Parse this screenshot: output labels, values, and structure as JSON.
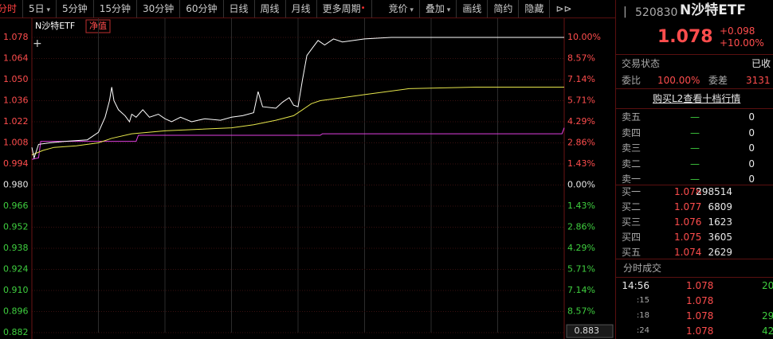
{
  "toolbar": {
    "periods": [
      "分时",
      "5日",
      "5分钟",
      "15分钟",
      "30分钟",
      "60分钟",
      "日线",
      "周线",
      "月线",
      "更多周期"
    ],
    "tools": [
      "竞价",
      "叠加",
      "画线",
      "简约",
      "隐藏"
    ]
  },
  "chart": {
    "legend": {
      "name": "N沙特ETF",
      "badge": "净值"
    },
    "xlim": [
      0,
      240
    ],
    "ylim": [
      0.882,
      1.078
    ],
    "yticks": [
      1.078,
      1.064,
      {
        "value": 1.05,
        "label": "1.050"
      },
      1.036,
      1.022,
      1.008,
      0.994,
      {
        "value": 0.98,
        "label": "0.980"
      },
      0.966,
      0.952,
      0.938,
      0.924,
      {
        "value": 0.91,
        "label": "0.910"
      },
      0.896,
      0.882
    ],
    "pct_labels": [
      "10.00%",
      "8.57%",
      "7.14%",
      "5.71%",
      "4.29%",
      "2.86%",
      "1.43%",
      "0.00%",
      "1.43%",
      "2.86%",
      "4.29%",
      "5.71%",
      "7.14%",
      "8.57%",
      "10.00%"
    ],
    "price": {
      "color": "#ffffff",
      "x": [
        0,
        1,
        3,
        8,
        15,
        25,
        30,
        33,
        35,
        36,
        37,
        39,
        42,
        44,
        45,
        47,
        50,
        53,
        57,
        60,
        63,
        67,
        72,
        78,
        85,
        90,
        95,
        100,
        102,
        104,
        110,
        113,
        116,
        118,
        120,
        122,
        124,
        126,
        129,
        132,
        136,
        140,
        150,
        162,
        240
      ],
      "values": [
        1.005,
        0.998,
        1.007,
        1.008,
        1.009,
        1.01,
        1.015,
        1.025,
        1.036,
        1.045,
        1.036,
        1.03,
        1.026,
        1.022,
        1.027,
        1.025,
        1.03,
        1.025,
        1.027,
        1.024,
        1.022,
        1.025,
        1.022,
        1.024,
        1.023,
        1.025,
        1.026,
        1.028,
        1.042,
        1.032,
        1.031,
        1.035,
        1.038,
        1.033,
        1.032,
        1.05,
        1.066,
        1.07,
        1.076,
        1.073,
        1.077,
        1.075,
        1.077,
        1.078,
        1.078
      ]
    },
    "average": {
      "color": "#e6e64c",
      "x": [
        0,
        5,
        10,
        20,
        30,
        36,
        45,
        60,
        90,
        100,
        110,
        118,
        122,
        126,
        130,
        140,
        150,
        170,
        200,
        240
      ],
      "values": [
        1.0,
        1.003,
        1.005,
        1.006,
        1.008,
        1.011,
        1.014,
        1.016,
        1.018,
        1.02,
        1.023,
        1.026,
        1.03,
        1.034,
        1.036,
        1.038,
        1.04,
        1.044,
        1.045,
        1.045
      ]
    },
    "nav": {
      "color": "#e040e0",
      "x": [
        0,
        3,
        4,
        47,
        48,
        130,
        131,
        239,
        240
      ],
      "values": [
        0.997,
        0.998,
        1.009,
        1.009,
        1.013,
        1.013,
        1.014,
        1.014,
        1.018
      ]
    },
    "cursor_label": 0.883
  },
  "quote": {
    "code": "520830",
    "name": "N沙特ETF",
    "price": 1.078,
    "change": "+0.098",
    "change_pct": "+10.00%",
    "status_label": "交易状态",
    "status": "已收",
    "ratio_label": "委比",
    "ratio": "100.00%",
    "diff_label": "委差",
    "diff": "3131",
    "l2_link": "购买L2查看十档行情",
    "asks": [
      {
        "label": "卖五",
        "price": "—",
        "volume": 0
      },
      {
        "label": "卖四",
        "price": "—",
        "volume": 0
      },
      {
        "label": "卖三",
        "price": "—",
        "volume": 0
      },
      {
        "label": "卖二",
        "price": "—",
        "volume": 0
      },
      {
        "label": "卖一",
        "price": "—",
        "volume": 0
      }
    ],
    "bids": [
      {
        "label": "买一",
        "price": 1.078,
        "volume": 298514
      },
      {
        "label": "买二",
        "price": 1.077,
        "volume": 6809
      },
      {
        "label": "买三",
        "price": 1.076,
        "volume": 1623
      },
      {
        "label": "买四",
        "price": 1.075,
        "volume": 3605
      },
      {
        "label": "买五",
        "price": 1.074,
        "volume": 2629
      }
    ],
    "trades_title": "分时成交",
    "trades": [
      {
        "time": "14:56",
        "price": 1.078,
        "volume": 20
      },
      {
        "time": ":15",
        "price": 1.078
      },
      {
        "time": ":18",
        "price": 1.078,
        "volume": 29
      },
      {
        "time": ":24",
        "price": 1.078,
        "volume": 42
      }
    ]
  }
}
